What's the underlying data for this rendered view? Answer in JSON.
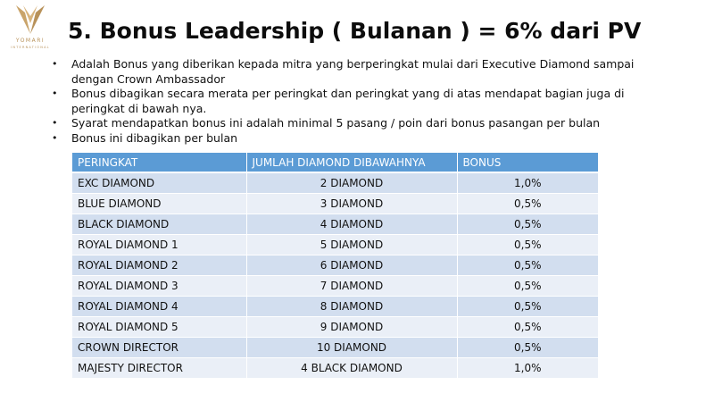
{
  "logo": {
    "name": "YOMARI",
    "sub": "INTERNATIONAL",
    "color": "#b8925a"
  },
  "title": "5. Bonus Leadership ( Bulanan ) = 6% dari PV",
  "bullets": [
    "Adalah Bonus yang diberikan kepada mitra yang berperingkat mulai dari Executive Diamond sampai dengan Crown Ambassador",
    "Bonus dibagikan secara merata per peringkat dan peringkat yang di atas mendapat bagian juga di peringkat di bawah nya.",
    "Syarat mendapatkan bonus ini adalah minimal 5 pasang / poin dari bonus pasangan per bulan",
    "Bonus ini dibagikan per bulan"
  ],
  "table": {
    "header_color": "#5b9bd5",
    "headers": [
      "PERINGKAT",
      "JUMLAH DIAMOND DIBAWAHNYA",
      "BONUS"
    ],
    "rows": [
      [
        "EXC DIAMOND",
        "2 DIAMOND",
        "1,0%"
      ],
      [
        "BLUE DIAMOND",
        "3 DIAMOND",
        "0,5%"
      ],
      [
        "BLACK DIAMOND",
        "4 DIAMOND",
        "0,5%"
      ],
      [
        "ROYAL DIAMOND 1",
        "5 DIAMOND",
        "0,5%"
      ],
      [
        "ROYAL DIAMOND 2",
        "6 DIAMOND",
        "0,5%"
      ],
      [
        "ROYAL DIAMOND 3",
        "7 DIAMOND",
        "0,5%"
      ],
      [
        "ROYAL DIAMOND 4",
        "8 DIAMOND",
        "0,5%"
      ],
      [
        "ROYAL DIAMOND 5",
        "9 DIAMOND",
        "0,5%"
      ],
      [
        "CROWN DIRECTOR",
        "10 DIAMOND",
        "0,5%"
      ],
      [
        "MAJESTY DIRECTOR",
        "4 BLACK DIAMOND",
        "1,0%"
      ]
    ]
  }
}
